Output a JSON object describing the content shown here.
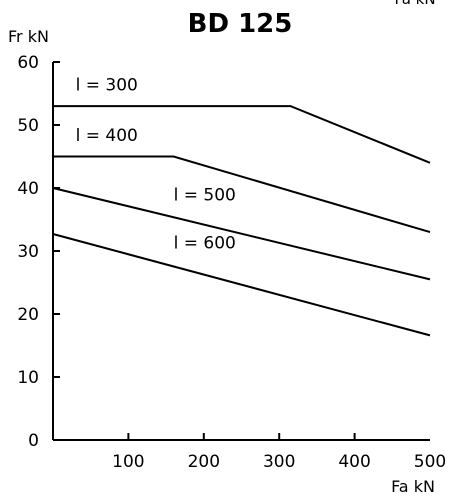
{
  "chart_data": {
    "type": "line",
    "title": "BD 125",
    "ylabel": "Fr kN",
    "xlabel": "Fa kN",
    "corner_label": "Fa kN",
    "xlim": [
      0,
      500
    ],
    "ylim": [
      0,
      60
    ],
    "x_ticks": [
      100,
      200,
      300,
      400,
      500
    ],
    "y_ticks": [
      0,
      10,
      20,
      30,
      40,
      50,
      60
    ],
    "grid": false,
    "series": [
      {
        "name": "l = 300",
        "points": [
          [
            0,
            53
          ],
          [
            315,
            53
          ],
          [
            500,
            44
          ]
        ]
      },
      {
        "name": "l = 400",
        "points": [
          [
            0,
            45
          ],
          [
            160,
            45
          ],
          [
            500,
            33
          ]
        ]
      },
      {
        "name": "l = 500",
        "points": [
          [
            0,
            40
          ],
          [
            500,
            25.5
          ]
        ]
      },
      {
        "name": "l = 600",
        "points": [
          [
            0,
            32.7
          ],
          [
            500,
            16.6
          ]
        ]
      }
    ],
    "labels": [
      {
        "text": "l = 300",
        "x": 30,
        "y": 55.5
      },
      {
        "text": "l = 400",
        "x": 30,
        "y": 47.5
      },
      {
        "text": "l = 500",
        "x": 160,
        "y": 38.0
      },
      {
        "text": "l = 600",
        "x": 160,
        "y": 30.4
      }
    ]
  }
}
